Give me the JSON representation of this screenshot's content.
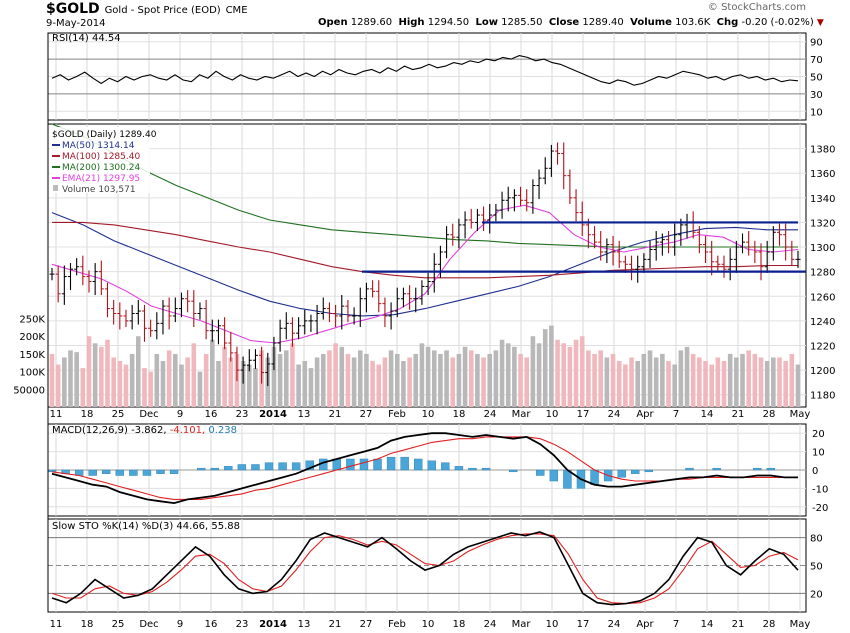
{
  "header": {
    "symbol": "$GOLD",
    "description": "Gold - Spot Price (EOD)",
    "exchange": "CME",
    "date": "9-May-2014",
    "open_label": "Open",
    "open": "1289.60",
    "high_label": "High",
    "high": "1294.50",
    "low_label": "Low",
    "low": "1285.50",
    "close_label": "Close",
    "close": "1289.40",
    "volume_label": "Volume",
    "volume": "103.6K",
    "chg_label": "Chg",
    "chg": "-0.20 (-0.02%)",
    "logo": "© StockCharts.com"
  },
  "colors": {
    "ma50": "#1f2f8f",
    "ma100": "#a31a2a",
    "ma200": "#207020",
    "ema21": "#e040e0",
    "price": "#000000",
    "vol_up": "#b8b8b8",
    "vol_down": "#f0b8bc",
    "macd": "#000000",
    "signal": "#e02020",
    "hist": "#4aa6d8",
    "k": "#000000",
    "d": "#e02020",
    "support": "#0a1f8f"
  },
  "chart_data": [
    {
      "type": "line",
      "panel": "RSI",
      "legend": "RSI(14) 44.54",
      "ylim": [
        0,
        100
      ],
      "yticks": [
        10,
        30,
        50,
        70,
        90
      ],
      "reference_lines": [
        30,
        70
      ],
      "series": [
        {
          "name": "RSI(14)",
          "values": [
            48,
            52,
            46,
            50,
            55,
            48,
            42,
            48,
            44,
            50,
            46,
            50,
            52,
            48,
            46,
            52,
            46,
            44,
            52,
            48,
            56,
            50,
            46,
            52,
            48,
            46,
            50,
            48,
            52,
            56,
            50,
            54,
            50,
            56,
            52,
            58,
            54,
            52,
            56,
            58,
            54,
            60,
            56,
            62,
            58,
            60,
            64,
            60,
            62,
            66,
            64,
            68,
            66,
            70,
            68,
            72,
            70,
            74,
            72,
            68,
            70,
            66,
            64,
            60,
            56,
            52,
            48,
            44,
            42,
            46,
            44,
            40,
            42,
            46,
            50,
            48,
            52,
            56,
            54,
            52,
            48,
            50,
            46,
            50,
            52,
            48,
            50,
            46,
            48,
            44,
            46,
            45
          ]
        }
      ]
    },
    {
      "type": "line",
      "panel": "Price",
      "legend": [
        "$GOLD (Daily) 1289.40",
        "MA(50) 1314.14",
        "MA(100) 1285.40",
        "MA(200) 1300.24",
        "EMA(21) 1297.95",
        "Volume 103,571"
      ],
      "ylim": [
        1170,
        1400
      ],
      "yticks": [
        1180,
        1200,
        1220,
        1240,
        1260,
        1280,
        1300,
        1320,
        1340,
        1360,
        1380
      ],
      "volume_ticks": [
        "50000",
        "100K",
        "150K",
        "200K",
        "250K"
      ],
      "horizontal_lines": [
        1320,
        1280
      ],
      "x_tick_labels": [
        "11",
        "18",
        "25",
        "Dec",
        "9",
        "16",
        "23",
        "2014",
        "13",
        "21",
        "27",
        "Feb",
        "10",
        "18",
        "24",
        "Mar",
        "10",
        "17",
        "24",
        "Apr",
        "7",
        "14",
        "21",
        "28",
        "May"
      ],
      "series": [
        {
          "name": "$GOLD (Daily)",
          "values": [
            1278,
            1262,
            1276,
            1282,
            1284,
            1276,
            1272,
            1280,
            1266,
            1250,
            1246,
            1244,
            1240,
            1246,
            1248,
            1234,
            1232,
            1238,
            1252,
            1244,
            1250,
            1258,
            1256,
            1246,
            1250,
            1232,
            1232,
            1236,
            1222,
            1214,
            1200,
            1204,
            1208,
            1212,
            1198,
            1205,
            1222,
            1234,
            1238,
            1230,
            1236,
            1240,
            1240,
            1246,
            1250,
            1246,
            1244,
            1252,
            1244,
            1244,
            1258,
            1266,
            1264,
            1254,
            1244,
            1248,
            1258,
            1262,
            1258,
            1258,
            1268,
            1272,
            1286,
            1296,
            1310,
            1308,
            1318,
            1322,
            1320,
            1326,
            1322,
            1326,
            1330,
            1338,
            1340,
            1342,
            1338,
            1336,
            1350,
            1356,
            1364,
            1378,
            1376,
            1358,
            1340,
            1328,
            1318,
            1310,
            1304,
            1296,
            1302,
            1296,
            1288,
            1286,
            1282,
            1284,
            1290,
            1298,
            1304,
            1306,
            1300,
            1310,
            1318,
            1320,
            1312,
            1302,
            1296,
            1288,
            1286,
            1282,
            1290,
            1300,
            1304,
            1300,
            1296,
            1284,
            1296,
            1312,
            1310,
            1300,
            1290,
            1290
          ]
        },
        {
          "name": "MA(50)",
          "values": [
            1328,
            1318,
            1305,
            1295,
            1285,
            1275,
            1265,
            1256,
            1250,
            1246,
            1244,
            1245,
            1250,
            1256,
            1262,
            1268,
            1276,
            1286,
            1296,
            1304,
            1310,
            1315,
            1316,
            1314,
            1314
          ]
        },
        {
          "name": "MA(100)",
          "values": [
            1320,
            1320,
            1318,
            1314,
            1310,
            1305,
            1300,
            1296,
            1290,
            1284,
            1280,
            1277,
            1275,
            1275,
            1275,
            1276,
            1277,
            1279,
            1281,
            1282,
            1283,
            1284,
            1284,
            1285,
            1285
          ]
        },
        {
          "name": "MA(200)",
          "values": [
            1400,
            1390,
            1376,
            1362,
            1350,
            1340,
            1330,
            1322,
            1318,
            1314,
            1312,
            1310,
            1308,
            1306,
            1305,
            1303,
            1302,
            1301,
            1300,
            1300,
            1300,
            1300,
            1300,
            1300,
            1300
          ]
        },
        {
          "name": "EMA(21)",
          "values": [
            1286,
            1280,
            1274,
            1264,
            1252,
            1246,
            1240,
            1232,
            1224,
            1222,
            1226,
            1232,
            1238,
            1243,
            1250,
            1262,
            1290,
            1312,
            1330,
            1334,
            1328,
            1310,
            1300,
            1296,
            1300,
            1304,
            1310,
            1308,
            1298,
            1296,
            1298
          ]
        }
      ],
      "volume_values": [
        150,
        120,
        140,
        160,
        155,
        110,
        200,
        180,
        170,
        190,
        140,
        130,
        120,
        150,
        200,
        110,
        100,
        150,
        130,
        160,
        150,
        120,
        140,
        180,
        100,
        150,
        190,
        130,
        170,
        140,
        150,
        130,
        120,
        110,
        160,
        140,
        170,
        150,
        160,
        180,
        120,
        130,
        110,
        140,
        150,
        160,
        180,
        170,
        150,
        140,
        160,
        150,
        130,
        120,
        140,
        160,
        150,
        130,
        140,
        150,
        180,
        170,
        160,
        150,
        160,
        140,
        150,
        170,
        160,
        150,
        140,
        150,
        160,
        190,
        180,
        170,
        150,
        140,
        200,
        180,
        220,
        230,
        190,
        180,
        170,
        190,
        200,
        160,
        150,
        160,
        140,
        150,
        130,
        120,
        140,
        130,
        150,
        160,
        140,
        150,
        130,
        120,
        160,
        170,
        150,
        140,
        130,
        120,
        140,
        130,
        150,
        140,
        150,
        160,
        150,
        140,
        130,
        140,
        140,
        130,
        150,
        120
      ]
    },
    {
      "type": "line",
      "panel": "MACD",
      "legend": "MACD(12,26,9) -3.862, -4.101, 0.238",
      "ylim": [
        -25,
        25
      ],
      "yticks": [
        -20,
        -10,
        0,
        10,
        20
      ],
      "series": [
        {
          "name": "MACD(12,26,9)",
          "values": [
            -2,
            -4,
            -6,
            -8,
            -9,
            -12,
            -14,
            -16,
            -17,
            -18,
            -16,
            -15,
            -14,
            -12,
            -10,
            -8,
            -6,
            -4,
            -2,
            1,
            4,
            6,
            8,
            10,
            12,
            16,
            18,
            19,
            20,
            20,
            19,
            18,
            19,
            18,
            17,
            18,
            14,
            8,
            0,
            -5,
            -8,
            -9,
            -9,
            -8,
            -7,
            -6,
            -5,
            -4,
            -4,
            -3,
            -4,
            -4,
            -3,
            -3,
            -4,
            -4
          ]
        },
        {
          "name": "Signal",
          "values": [
            -1,
            -2,
            -3,
            -5,
            -7,
            -9,
            -11,
            -13,
            -15,
            -16,
            -16,
            -16,
            -15,
            -14,
            -13,
            -11,
            -10,
            -8,
            -6,
            -4,
            -2,
            0,
            2,
            4,
            6,
            9,
            11,
            13,
            15,
            16,
            17,
            17,
            18,
            18,
            18,
            18,
            17,
            14,
            10,
            5,
            0,
            -3,
            -5,
            -6,
            -6,
            -6,
            -5,
            -5,
            -4,
            -4,
            -4,
            -4,
            -4,
            -4,
            -4,
            -4
          ]
        }
      ]
    },
    {
      "type": "line",
      "panel": "Slow STO",
      "legend": "Slow STO %K(14) %D(3) 44.66, 55.88",
      "ylim": [
        0,
        100
      ],
      "yticks": [
        20,
        50,
        80
      ],
      "reference_lines": [
        20,
        50,
        80
      ],
      "series": [
        {
          "name": "%K(14)",
          "values": [
            15,
            10,
            20,
            35,
            25,
            15,
            18,
            25,
            40,
            55,
            70,
            60,
            40,
            25,
            20,
            22,
            35,
            55,
            78,
            85,
            80,
            75,
            70,
            80,
            68,
            55,
            45,
            50,
            62,
            70,
            75,
            80,
            85,
            82,
            86,
            80,
            50,
            20,
            10,
            8,
            9,
            12,
            20,
            35,
            60,
            80,
            75,
            50,
            40,
            55,
            68,
            62,
            45
          ]
        },
        {
          "name": "%D(3)",
          "values": [
            20,
            15,
            15,
            25,
            28,
            20,
            18,
            22,
            32,
            45,
            60,
            62,
            52,
            35,
            25,
            22,
            28,
            45,
            65,
            80,
            82,
            78,
            72,
            76,
            72,
            62,
            52,
            50,
            55,
            65,
            72,
            78,
            82,
            84,
            84,
            82,
            62,
            35,
            15,
            10,
            9,
            10,
            15,
            25,
            45,
            68,
            76,
            62,
            48,
            50,
            60,
            64,
            56
          ]
        }
      ]
    }
  ]
}
